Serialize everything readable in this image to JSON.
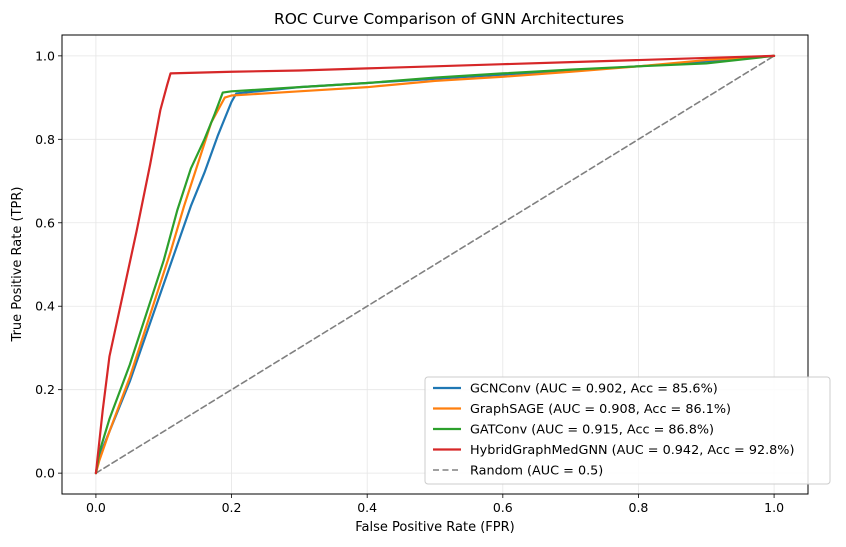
{
  "chart_data": {
    "type": "line",
    "title": "ROC Curve Comparison of GNN Architectures",
    "xlabel": "False Positive Rate (FPR)",
    "ylabel": "True Positive Rate (TPR)",
    "xlim": [
      -0.05,
      1.05
    ],
    "ylim": [
      -0.05,
      1.05
    ],
    "xticks": [
      0.0,
      0.2,
      0.4,
      0.6,
      0.8,
      1.0
    ],
    "yticks": [
      0.0,
      0.2,
      0.4,
      0.6,
      0.8,
      1.0
    ],
    "xtick_labels": [
      "0.0",
      "0.2",
      "0.4",
      "0.6",
      "0.8",
      "1.0"
    ],
    "ytick_labels": [
      "0.0",
      "0.2",
      "0.4",
      "0.6",
      "0.8",
      "1.0"
    ],
    "grid": true,
    "legend_position": "lower-right",
    "series": [
      {
        "name": "GCNConv (AUC = 0.902, Acc = 85.6%)",
        "color": "#1f77b4",
        "dash": "solid",
        "x": [
          0,
          0.005,
          0.02,
          0.05,
          0.08,
          0.11,
          0.14,
          0.16,
          0.18,
          0.2,
          0.207,
          0.3,
          0.4,
          0.5,
          0.6,
          0.7,
          0.8,
          0.9,
          1.0
        ],
        "y": [
          0,
          0.04,
          0.1,
          0.22,
          0.36,
          0.5,
          0.64,
          0.72,
          0.81,
          0.89,
          0.91,
          0.925,
          0.935,
          0.945,
          0.955,
          0.965,
          0.975,
          0.987,
          1.0
        ]
      },
      {
        "name": "GraphSAGE (AUC = 0.908, Acc = 86.1%)",
        "color": "#ff7f0e",
        "dash": "solid",
        "x": [
          0,
          0.005,
          0.02,
          0.05,
          0.08,
          0.11,
          0.13,
          0.15,
          0.17,
          0.19,
          0.2,
          0.3,
          0.4,
          0.5,
          0.6,
          0.7,
          0.8,
          0.9,
          1.0
        ],
        "y": [
          0,
          0.03,
          0.1,
          0.23,
          0.38,
          0.53,
          0.64,
          0.74,
          0.84,
          0.9,
          0.905,
          0.915,
          0.925,
          0.94,
          0.95,
          0.962,
          0.975,
          0.99,
          1.0
        ]
      },
      {
        "name": "GATConv (AUC = 0.915, Acc = 86.8%)",
        "color": "#2ca02c",
        "dash": "solid",
        "x": [
          0,
          0.005,
          0.02,
          0.05,
          0.08,
          0.1,
          0.12,
          0.14,
          0.16,
          0.175,
          0.187,
          0.2,
          0.3,
          0.4,
          0.5,
          0.6,
          0.7,
          0.8,
          0.9,
          1.0
        ],
        "y": [
          0,
          0.05,
          0.13,
          0.26,
          0.41,
          0.51,
          0.63,
          0.73,
          0.8,
          0.86,
          0.912,
          0.915,
          0.925,
          0.935,
          0.948,
          0.958,
          0.967,
          0.975,
          0.982,
          1.0
        ]
      },
      {
        "name": "HybridGraphMedGNN (AUC = 0.942, Acc = 92.8%)",
        "color": "#d62728",
        "dash": "solid",
        "x": [
          0,
          0.004,
          0.01,
          0.02,
          0.04,
          0.06,
          0.08,
          0.095,
          0.105,
          0.11,
          0.2,
          0.3,
          0.4,
          0.5,
          0.6,
          0.7,
          0.8,
          0.9,
          1.0
        ],
        "y": [
          0,
          0.06,
          0.15,
          0.28,
          0.43,
          0.58,
          0.74,
          0.87,
          0.93,
          0.958,
          0.962,
          0.965,
          0.97,
          0.975,
          0.98,
          0.985,
          0.99,
          0.995,
          1.0
        ]
      },
      {
        "name": "Random (AUC = 0.5)",
        "color": "#808080",
        "dash": "dashed",
        "x": [
          0,
          1
        ],
        "y": [
          0,
          1
        ]
      }
    ]
  }
}
